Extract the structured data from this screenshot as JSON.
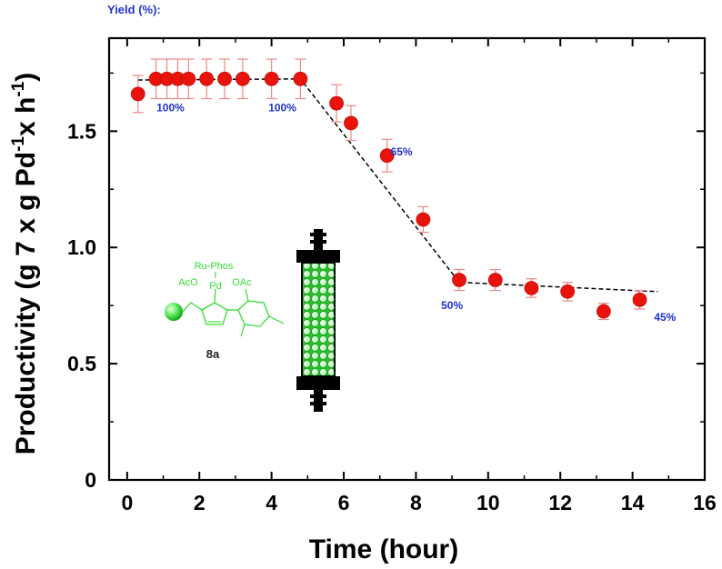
{
  "chart_data": {
    "type": "scatter",
    "header": "Yield (%):",
    "xlabel": "Time (hour)",
    "ylabel_parts": [
      "Productivity (g 7 x g Pd",
      "-1",
      "x h",
      "-1",
      ")"
    ],
    "xlim": [
      -0.5,
      16
    ],
    "ylim": [
      0,
      1.9
    ],
    "x_ticks": [
      "0",
      "2",
      "4",
      "6",
      "8",
      "10",
      "12",
      "14",
      "16"
    ],
    "y_ticks": [
      "0",
      "0.5",
      "1.0",
      "1.5"
    ],
    "series": [
      {
        "name": "Productivity",
        "color": "#e8140c",
        "points": [
          {
            "x": 0.3,
            "y": 1.66,
            "err": 0.08
          },
          {
            "x": 0.8,
            "y": 1.725,
            "err": 0.085
          },
          {
            "x": 1.1,
            "y": 1.725,
            "err": 0.085
          },
          {
            "x": 1.4,
            "y": 1.725,
            "err": 0.085
          },
          {
            "x": 1.7,
            "y": 1.725,
            "err": 0.085
          },
          {
            "x": 2.2,
            "y": 1.725,
            "err": 0.085
          },
          {
            "x": 2.7,
            "y": 1.725,
            "err": 0.085
          },
          {
            "x": 3.2,
            "y": 1.725,
            "err": 0.085
          },
          {
            "x": 4.0,
            "y": 1.725,
            "err": 0.085
          },
          {
            "x": 4.8,
            "y": 1.725,
            "err": 0.085
          },
          {
            "x": 5.8,
            "y": 1.62,
            "err": 0.08
          },
          {
            "x": 6.2,
            "y": 1.535,
            "err": 0.075
          },
          {
            "x": 7.2,
            "y": 1.395,
            "err": 0.07
          },
          {
            "x": 8.2,
            "y": 1.12,
            "err": 0.055
          },
          {
            "x": 9.2,
            "y": 0.86,
            "err": 0.045
          },
          {
            "x": 10.2,
            "y": 0.86,
            "err": 0.045
          },
          {
            "x": 11.2,
            "y": 0.825,
            "err": 0.04
          },
          {
            "x": 12.2,
            "y": 0.81,
            "err": 0.04
          },
          {
            "x": 13.2,
            "y": 0.725,
            "err": 0.035
          },
          {
            "x": 14.2,
            "y": 0.775,
            "err": 0.04
          }
        ]
      }
    ],
    "trend_line": [
      {
        "x": 0.3,
        "y": 1.72
      },
      {
        "x": 4.8,
        "y": 1.725
      },
      {
        "x": 9.2,
        "y": 0.85
      },
      {
        "x": 14.7,
        "y": 0.81
      }
    ],
    "annotations": [
      {
        "text": "100%",
        "x": 1.2,
        "y": 1.585
      },
      {
        "text": "100%",
        "x": 4.3,
        "y": 1.585
      },
      {
        "text": "65%",
        "x": 7.6,
        "y": 1.395
      },
      {
        "text": "50%",
        "x": 9.0,
        "y": 0.735
      },
      {
        "text": "45%",
        "x": 14.9,
        "y": 0.685
      }
    ],
    "annotation_color": "#2233cc",
    "inset": {
      "labels": [
        "Ru-Phos",
        "AcO",
        "Pd",
        "OAc"
      ],
      "compound_code": "8a",
      "color": "#33dd33"
    }
  }
}
